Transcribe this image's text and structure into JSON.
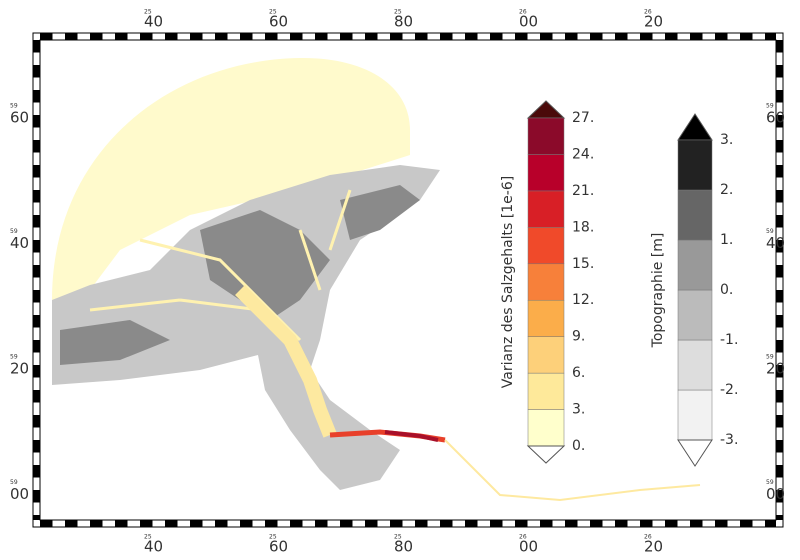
{
  "map": {
    "x_labels": [
      {
        "label": "40",
        "prefix": "25"
      },
      {
        "label": "60",
        "prefix": "25"
      },
      {
        "label": "80",
        "prefix": "25"
      },
      {
        "label": "00",
        "prefix": "26"
      },
      {
        "label": "20",
        "prefix": "26"
      }
    ],
    "y_labels": [
      {
        "label": "60",
        "prefix": "59"
      },
      {
        "label": "40",
        "prefix": "59"
      },
      {
        "label": "20",
        "prefix": "59"
      },
      {
        "label": "00",
        "prefix": "59"
      }
    ],
    "salinity_legend": {
      "title": "Varianz des Salzgehalts [1e-6]",
      "labels": [
        "0.",
        "3.",
        "6.",
        "9.",
        "12.",
        "15.",
        "18.",
        "21.",
        "24.",
        "27."
      ],
      "colors": [
        "#ffffcc",
        "#fee99a",
        "#fdd07a",
        "#fbad4a",
        "#f7803a",
        "#f04a2a",
        "#d81f26",
        "#b8002a",
        "#8b0a2a"
      ],
      "over_color": "#4a0a0a"
    },
    "topography_legend": {
      "title": "Topographie [m]",
      "labels": [
        "-3.",
        "-2.",
        "-1.",
        "0.",
        "1.",
        "2.",
        "3."
      ],
      "colors": [
        "#f2f2f2",
        "#dddddd",
        "#bbbbbb",
        "#999999",
        "#666666",
        "#222222"
      ],
      "over_color": "#000000"
    }
  }
}
